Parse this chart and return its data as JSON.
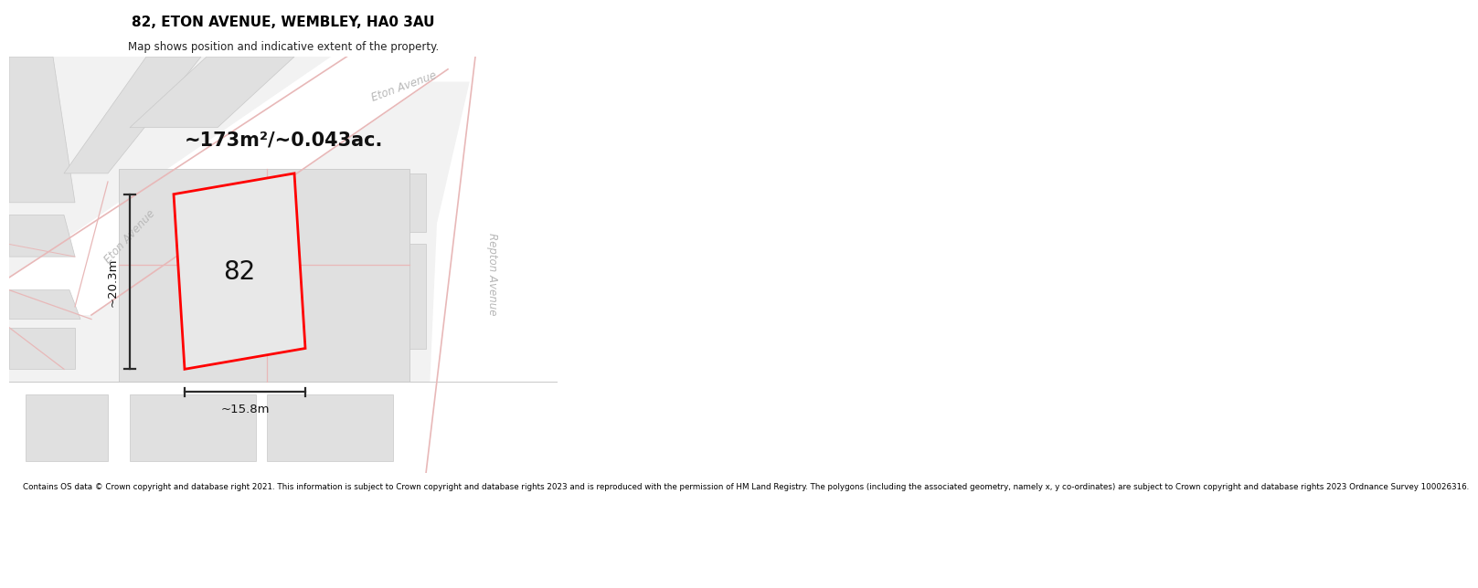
{
  "title": "82, ETON AVENUE, WEMBLEY, HA0 3AU",
  "subtitle": "Map shows position and indicative extent of the property.",
  "footer": "Contains OS data © Crown copyright and database right 2021. This information is subject to Crown copyright and database rights 2023 and is reproduced with the permission of HM Land Registry. The polygons (including the associated geometry, namely x, y co-ordinates) are subject to Crown copyright and database rights 2023 Ordnance Survey 100026316.",
  "area_label": "~173m²/~0.043ac.",
  "number_label": "82",
  "dim_height": "~20.3m",
  "dim_width": "~15.8m",
  "street_label_eton_diag": "Eton Avenue",
  "street_label_eton_top": "Eton Avenue",
  "street_label_repton": "Repton Avenue",
  "bg_color": "#ffffff",
  "map_bg": "#f2f2f2",
  "road_color": "#ffffff",
  "building_color": "#e0e0e0",
  "pink_line": "#e8b8b8",
  "gray_line": "#c8c8c8",
  "property_fill": "#e8e8e8",
  "property_outline": "#ff0000",
  "dim_color": "#2a2a2a",
  "label_color": "#111111",
  "street_color": "#b8b8b8"
}
